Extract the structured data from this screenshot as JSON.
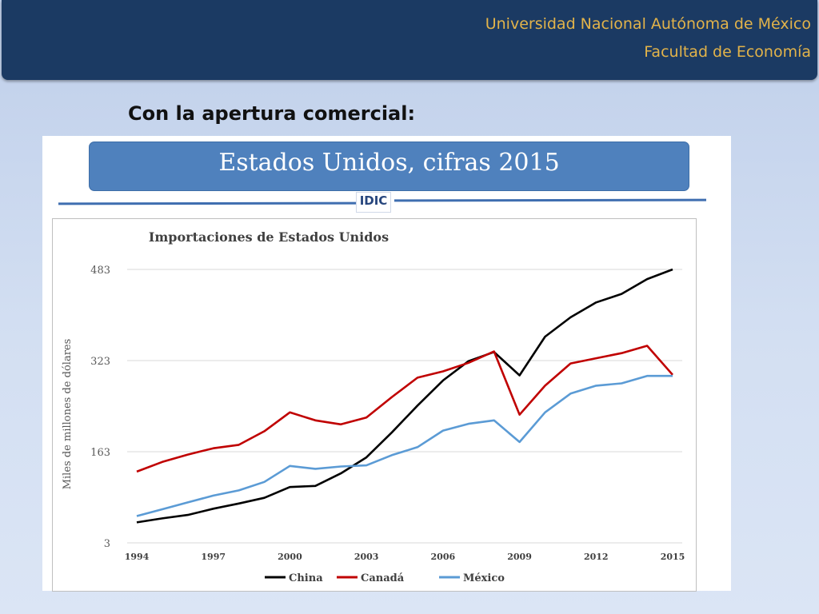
{
  "header": {
    "line1": "Universidad Nacional Autónoma de México",
    "line2": "Facultad de Economía"
  },
  "slide": {
    "title": "Con la apertura comercial:"
  },
  "figure": {
    "banner": "Estados Unidos, cifras 2015",
    "logo": "IDIC"
  },
  "colors": {
    "header_bg": "#1b3a63",
    "header_text": "#e2b34a",
    "banner_bg": "#4f81bd",
    "china": "#000000",
    "canada": "#c00000",
    "mexico": "#5b9bd5"
  },
  "chart_data": {
    "type": "line",
    "title": "Importaciones de Estados Unidos",
    "xlabel": "",
    "ylabel": "Miles de millones de dólares",
    "x": [
      1994,
      1995,
      1996,
      1997,
      1998,
      1999,
      2000,
      2001,
      2002,
      2003,
      2004,
      2005,
      2006,
      2007,
      2008,
      2009,
      2010,
      2011,
      2012,
      2013,
      2014,
      2015
    ],
    "x_ticks": [
      "1994",
      "1997",
      "2000",
      "2003",
      "2006",
      "2009",
      "2012",
      "2015"
    ],
    "y_ticks": [
      "3",
      "163",
      "323",
      "483"
    ],
    "ylim": [
      3,
      483
    ],
    "grid": true,
    "legend_position": "bottom",
    "series": [
      {
        "name": "China",
        "color": "#000000",
        "values": [
          39,
          46,
          52,
          63,
          72,
          82,
          101,
          103,
          125,
          153,
          197,
          244,
          288,
          322,
          338,
          297,
          365,
          399,
          425,
          440,
          466,
          483
        ]
      },
      {
        "name": "Canadá",
        "color": "#c00000",
        "values": [
          128,
          145,
          158,
          169,
          175,
          199,
          232,
          218,
          211,
          223,
          259,
          293,
          304,
          319,
          339,
          228,
          279,
          318,
          327,
          336,
          349,
          298
        ]
      },
      {
        "name": "México",
        "color": "#5b9bd5",
        "values": [
          50,
          62,
          74,
          86,
          95,
          110,
          138,
          133,
          137,
          139,
          157,
          171,
          200,
          212,
          218,
          180,
          232,
          265,
          279,
          283,
          296,
          296
        ]
      }
    ]
  }
}
